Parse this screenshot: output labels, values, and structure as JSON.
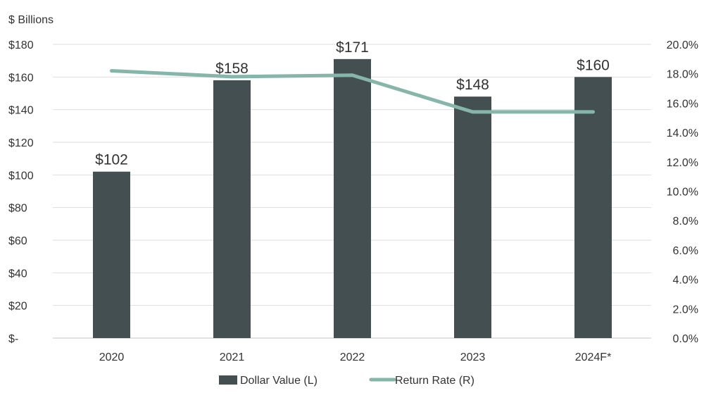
{
  "chart_data": {
    "type": "bar",
    "categories": [
      "2020",
      "2021",
      "2022",
      "2023",
      "2024F*"
    ],
    "series": [
      {
        "name": "Dollar Value (L)",
        "type": "bar",
        "axis": "left",
        "values": [
          102,
          158,
          171,
          148,
          160
        ],
        "data_labels": [
          "$102",
          "$158",
          "$171",
          "$148",
          "$160"
        ],
        "color": "#444f52"
      },
      {
        "name": "Return Rate (R)",
        "type": "line",
        "axis": "right",
        "values": [
          18.2,
          17.8,
          17.9,
          15.4,
          15.4
        ],
        "color": "#86b6a9"
      }
    ],
    "ylabel": "$ Billions",
    "ylim": [
      0,
      180
    ],
    "y_ticks": [
      0,
      20,
      40,
      60,
      80,
      100,
      120,
      140,
      160,
      180
    ],
    "y_tick_labels": [
      "$-",
      "$20",
      "$40",
      "$60",
      "$80",
      "$100",
      "$120",
      "$140",
      "$160",
      "$180"
    ],
    "y2lim": [
      0,
      20
    ],
    "y2_ticks": [
      0,
      2,
      4,
      6,
      8,
      10,
      12,
      14,
      16,
      18,
      20
    ],
    "y2_tick_labels": [
      "0.0%",
      "2.0%",
      "4.0%",
      "6.0%",
      "8.0%",
      "10.0%",
      "12.0%",
      "14.0%",
      "16.0%",
      "18.0%",
      "20.0%"
    ],
    "grid": true,
    "legend_position": "bottom-center"
  }
}
